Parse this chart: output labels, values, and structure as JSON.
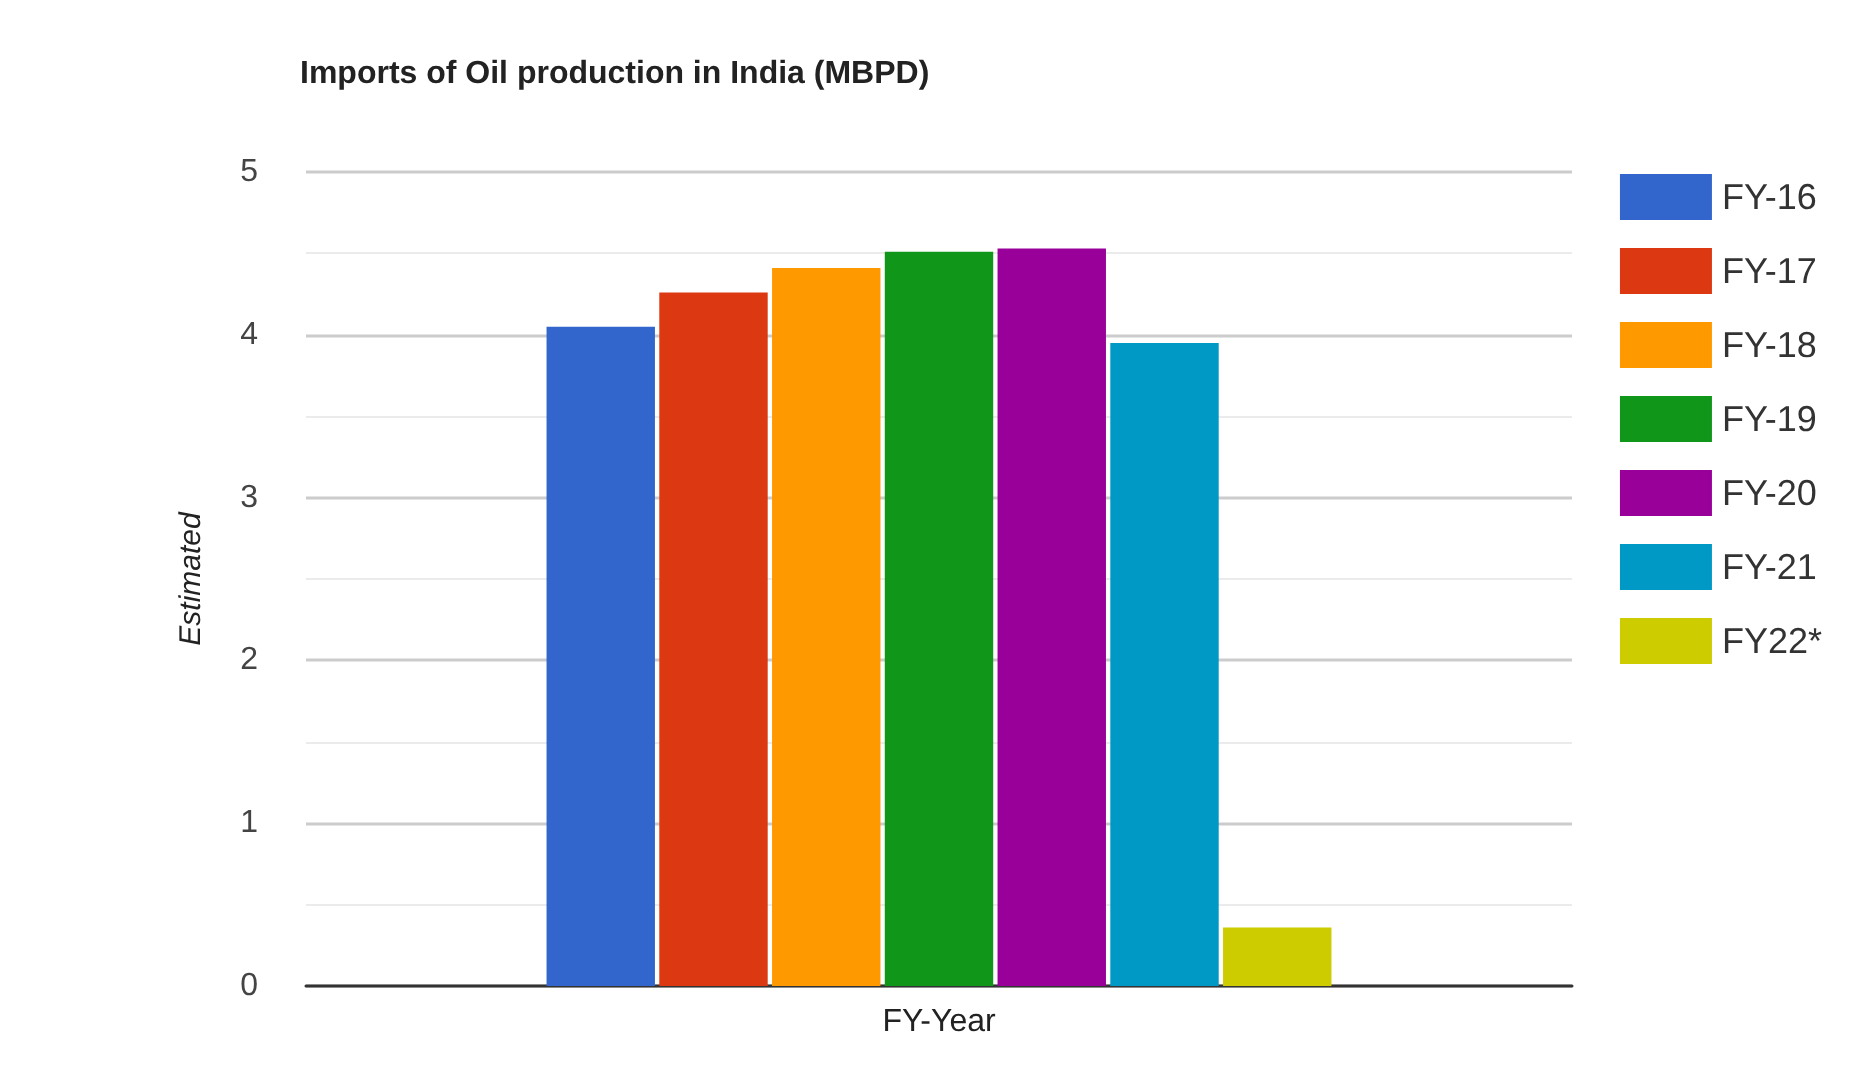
{
  "chart_data": {
    "type": "bar",
    "title": "Imports of Oil production in India (MBPD)",
    "ylabel": "Estimated",
    "categories": [
      "FY-Year"
    ],
    "series": [
      {
        "name": "FY-16",
        "color": "#3366cc",
        "values": [
          4.05
        ]
      },
      {
        "name": "FY-17",
        "color": "#dc3912",
        "values": [
          4.26
        ]
      },
      {
        "name": "FY-18",
        "color": "#ff9900",
        "values": [
          4.41
        ]
      },
      {
        "name": "FY-19",
        "color": "#109618",
        "values": [
          4.51
        ]
      },
      {
        "name": "FY-20",
        "color": "#990099",
        "values": [
          4.53
        ]
      },
      {
        "name": "FY-21",
        "color": "#0099c6",
        "values": [
          3.95
        ]
      },
      {
        "name": "FY22*",
        "color": "#cccc00",
        "values": [
          0.36
        ]
      }
    ],
    "ylim": [
      0,
      5
    ],
    "yticks": [
      0,
      1,
      2,
      3,
      4,
      5
    ],
    "grid": true,
    "legend": "right"
  }
}
